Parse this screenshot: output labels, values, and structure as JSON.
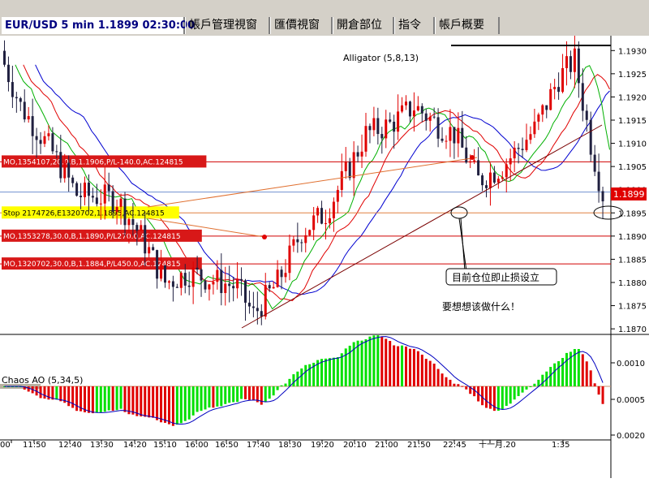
{
  "window": {
    "tabs": [
      "EUR/USD 5 min 1.1899 02:30:00",
      "帳戶管理視窗",
      "匯價視窗",
      "開倉部位",
      "指令",
      "帳戶概要"
    ]
  },
  "chart_data": {
    "type": "candlestick",
    "symbol": "EUR/USD",
    "timeframe": "5 min",
    "last_price": "1.1899",
    "y_ticks": [
      "1.1930",
      "1.1925",
      "1.1920",
      "1.1915",
      "1.1910",
      "1.1905",
      "1.1900",
      "1.1895",
      "1.1890",
      "1.1885",
      "1.1880",
      "1.1875",
      "1.1870"
    ],
    "x_ticks": [
      "00",
      "11:50",
      "12:40",
      "13:30",
      "14:20",
      "15:10",
      "16:00",
      "16:50",
      "17:40",
      "18:30",
      "19:20",
      "20:10",
      "21:00",
      "21:50",
      "22:45",
      "十一月.20",
      "1:35"
    ],
    "ylim": [
      1.18695,
      1.19325
    ],
    "alligator_label": "Alligator (5,8,13)",
    "ao_label": "Chaos AO (5,34,5)",
    "ao_ticks": [
      "0.0010",
      "0.0005",
      "0.0020"
    ],
    "order_lines": [
      {
        "label": "MO,1354107,20.0,B,1.1906,P/L-140.0,AC.124815",
        "price": 1.1906,
        "color": "#d00000"
      },
      {
        "label": "Stop 2174726,E1320702,1.1895,AC.124815",
        "price": 1.1895,
        "color": "#e08040"
      },
      {
        "label": "MO,1353278,30.0,B,1.1890,P/L270.0,AC.124815",
        "price": 1.189,
        "color": "#d00000"
      },
      {
        "label": "MO,1320702,30.0,B,1.1884,P/L450.0,AC.124815",
        "price": 1.1884,
        "color": "#d00000"
      }
    ],
    "annotations": [
      "目前仓位即止损设立",
      "要想想该做什么！"
    ]
  }
}
